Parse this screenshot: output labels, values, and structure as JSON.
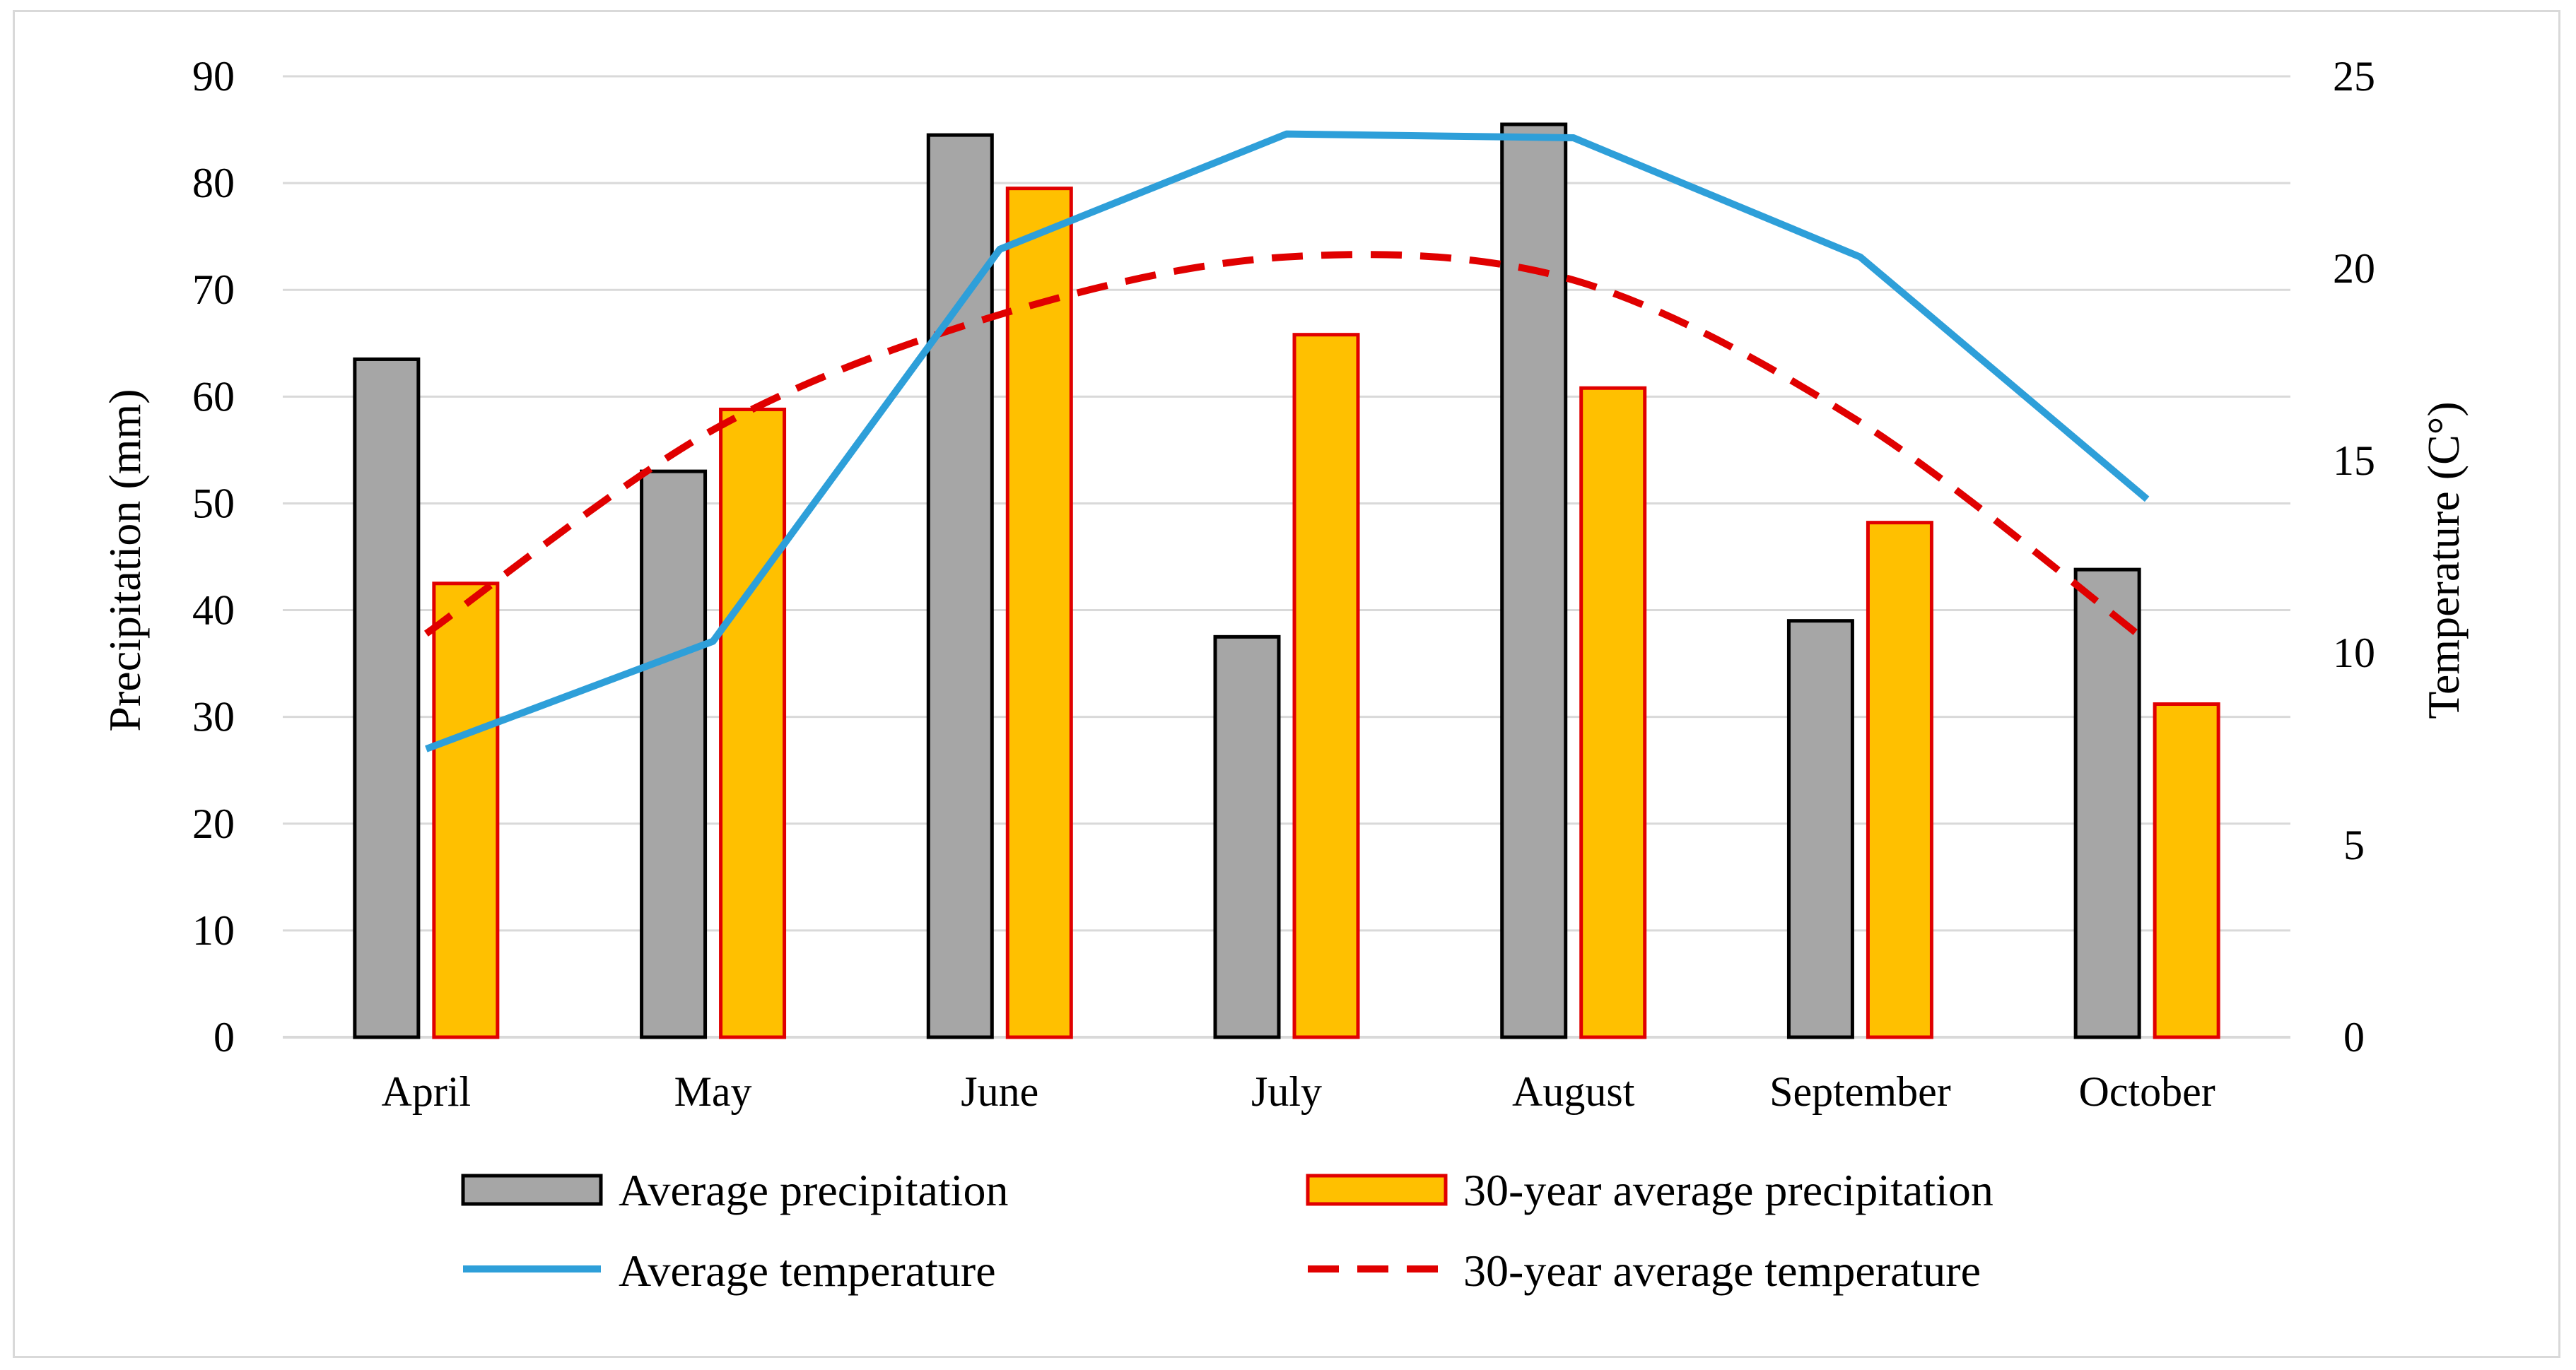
{
  "chart_data": {
    "type": "bar",
    "categories": [
      "April",
      "May",
      "June",
      "July",
      "August",
      "September",
      "October"
    ],
    "series": [
      {
        "name": "Average precipitation",
        "kind": "bar",
        "axis": "left",
        "values": [
          63.5,
          53.0,
          84.5,
          37.5,
          85.5,
          39.0,
          43.8
        ]
      },
      {
        "name": "30-year average precipitation",
        "kind": "bar",
        "axis": "left",
        "values": [
          42.5,
          58.8,
          79.5,
          65.8,
          60.8,
          48.2,
          31.2
        ]
      },
      {
        "name": "Average temperature",
        "kind": "line",
        "axis": "right",
        "values": [
          7.5,
          10.3,
          20.5,
          23.5,
          23.4,
          20.3,
          14.0
        ]
      },
      {
        "name": "30-year average temperature",
        "kind": "dashed-line",
        "axis": "right",
        "values": [
          10.5,
          15.8,
          18.8,
          20.3,
          19.7,
          16.0,
          10.3
        ]
      }
    ],
    "left_axis": {
      "label": "Precipitation (mm)",
      "ylim": [
        0,
        90
      ],
      "ticks": [
        "0",
        "10",
        "20",
        "30",
        "40",
        "50",
        "60",
        "70",
        "80",
        "90"
      ]
    },
    "right_axis": {
      "label": "Temperature (C°)",
      "ylim": [
        0,
        25
      ],
      "ticks": [
        "0",
        "5",
        "10",
        "15",
        "20",
        "25"
      ]
    },
    "grid": true,
    "legend_position": "bottom",
    "colors": {
      "avg_precip_fill": "#a6a6a6",
      "avg_precip_stroke": "#000000",
      "thirty_precip_fill": "#ffc000",
      "thirty_precip_stroke": "#e00000",
      "avg_temp": "#2e9fd9",
      "thirty_temp": "#e00000",
      "grid": "#d9d9d9"
    }
  }
}
